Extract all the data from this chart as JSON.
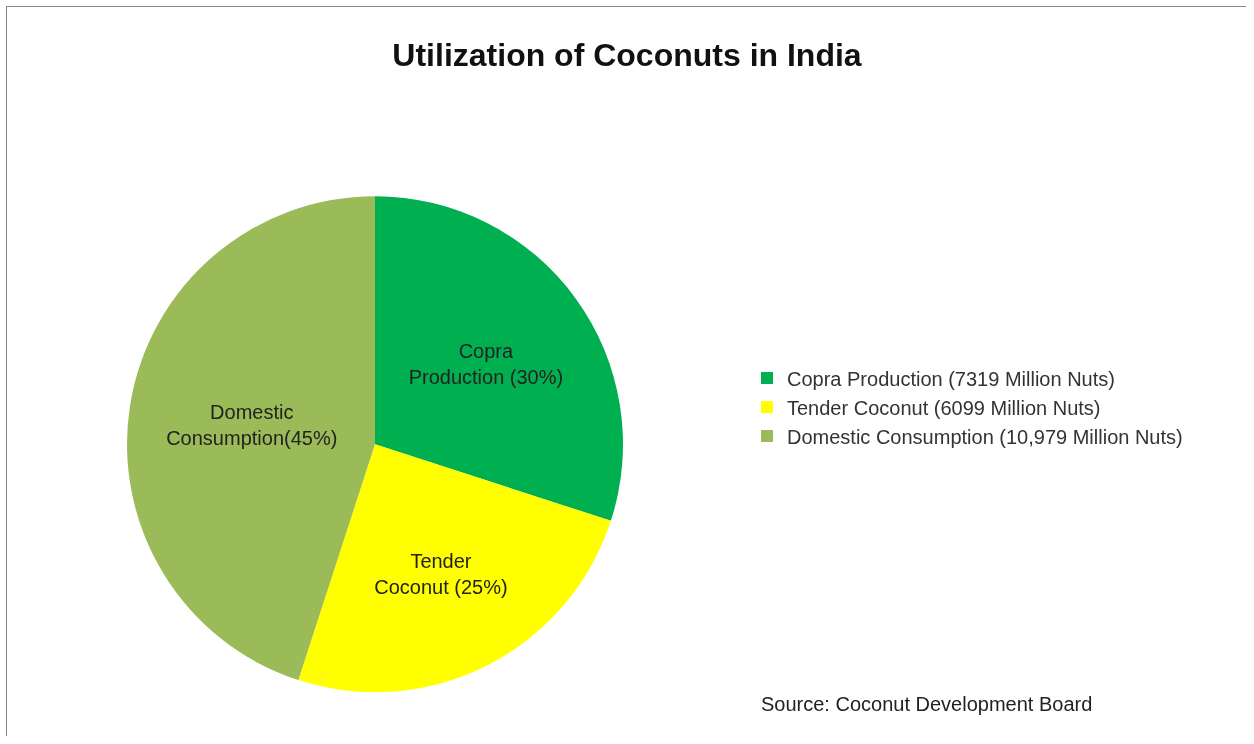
{
  "chart_data": {
    "type": "pie",
    "title": "Utilization of Coconuts in India",
    "categories": [
      "Copra Production (7319 Million Nuts)",
      "Tender Coconut (6099 Million Nuts)",
      "Domestic Consumption (10,979 Million Nuts)"
    ],
    "values": [
      30,
      25,
      45
    ],
    "colors": [
      "#00b050",
      "#ffff00",
      "#9bbb59"
    ],
    "value_labels": [
      "Copra Production (30%)",
      "Tender Coconut (25%)",
      "Domestic Consumption(45%)"
    ],
    "legend": "right",
    "annotations": [
      "Source: Coconut Development Board"
    ]
  }
}
